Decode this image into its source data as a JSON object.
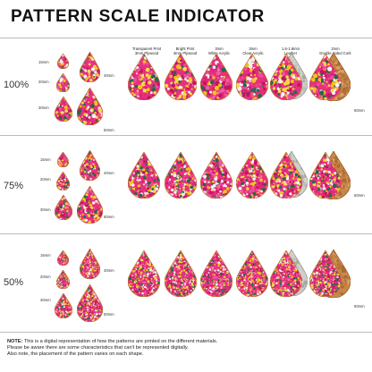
{
  "title": "PATTERN SCALE INDICATOR",
  "columns": [
    {
      "line1": "Transparent Print",
      "line2": "3mm Plywood"
    },
    {
      "line1": "Bright Print",
      "line2": "3mm Plywood"
    },
    {
      "line1": "3mm",
      "line2": "White Acrylic"
    },
    {
      "line1": "3mm",
      "line2": "Clear Acrylic"
    },
    {
      "line1": "1.6-1.8mm",
      "line2": "Leather"
    },
    {
      "line1": "2mm",
      "line2": "Double Sided Cork"
    }
  ],
  "size_labels": {
    "s15": "15mm",
    "s20": "20mm",
    "s30": "30mm",
    "s40": "40mm",
    "s50": "50mm",
    "s60": "60mm"
  },
  "scales": [
    {
      "label": "100%"
    },
    {
      "label": "75%"
    },
    {
      "label": "50%"
    }
  ],
  "note": {
    "label": "NOTE:",
    "line1": " This is a digital representation of how the patterns are printed on the different materials.",
    "line2": "Please be aware there are some characteristics that can't be represented digitally.",
    "line3": "Also note, the placement of the pattern varies on each shape."
  }
}
